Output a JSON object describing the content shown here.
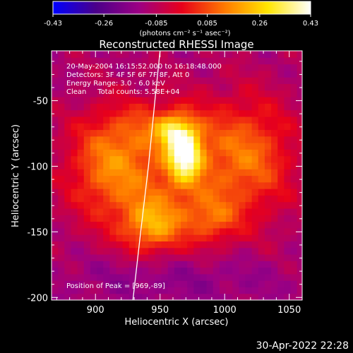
{
  "chart_data": {
    "type": "heatmap",
    "title": "Reconstructed RHESSI Image",
    "xlabel": "Heliocentric X (arcsec)",
    "ylabel": "Heliocentric Y (arcsec)",
    "xlim": [
      866,
      1060
    ],
    "ylim": [
      -202,
      -12
    ],
    "x_ticks": [
      900,
      950,
      1000,
      1050
    ],
    "x_tick_labels": [
      "900",
      "950",
      "1000",
      "1050"
    ],
    "y_ticks": [
      -50,
      -100,
      -150,
      -200
    ],
    "y_tick_labels": [
      "-50",
      "-100",
      "-150",
      "-200"
    ],
    "annotations": [
      "20-May-2004 16:15:52.000 to 16:18:48.000",
      "Detectors: 3F 4F 5F 6F 7F 8F, Att 0",
      "Energy Range: 3.0 - 6.0 keV",
      "Clean     Total counts: 5.58E+04"
    ],
    "peak_label": "Position of Peak = [969,-89]",
    "peak": [
      969,
      -89
    ],
    "colorbar": {
      "min": -0.43,
      "max": 0.43,
      "ticks": [
        -0.43,
        -0.26,
        -0.085,
        0.085,
        0.26,
        0.43
      ],
      "tick_labels": [
        "-0.43",
        "-0.26",
        "-0.085",
        "0.085",
        "0.26",
        "0.43"
      ],
      "label": "(photons cm⁻² s⁻¹ asec⁻²)",
      "colors": [
        "#0000ff",
        "#4b008a",
        "#9c0084",
        "#e8001a",
        "#ff7a00",
        "#ffe600",
        "#ffffff"
      ]
    },
    "background_level": -0.11,
    "sources": [
      {
        "x": 969,
        "y": -89,
        "amp": 0.44,
        "sx": 9,
        "sy": 15
      },
      {
        "x": 958,
        "y": -72,
        "amp": 0.18,
        "sx": 8,
        "sy": 8
      },
      {
        "x": 944,
        "y": -145,
        "amp": 0.23,
        "sx": 16,
        "sy": 14
      },
      {
        "x": 990,
        "y": -140,
        "amp": 0.14,
        "sx": 14,
        "sy": 12
      },
      {
        "x": 910,
        "y": -100,
        "amp": 0.18,
        "sx": 22,
        "sy": 26
      },
      {
        "x": 1020,
        "y": -90,
        "amp": 0.18,
        "sx": 24,
        "sy": 30
      },
      {
        "x": 960,
        "y": -110,
        "amp": 0.16,
        "sx": 45,
        "sy": 36
      },
      {
        "x": 945,
        "y": -70,
        "amp": 0.1,
        "sx": 30,
        "sy": 14
      },
      {
        "x": 960,
        "y": -185,
        "amp": -0.07,
        "sx": 60,
        "sy": 14
      }
    ],
    "limb_points": [
      [
        929,
        -202
      ],
      [
        935,
        -150
      ],
      [
        941,
        -100
      ],
      [
        946,
        -50
      ],
      [
        950,
        -12
      ]
    ],
    "grid": false,
    "timestamp": "30-Apr-2022 22:28"
  }
}
